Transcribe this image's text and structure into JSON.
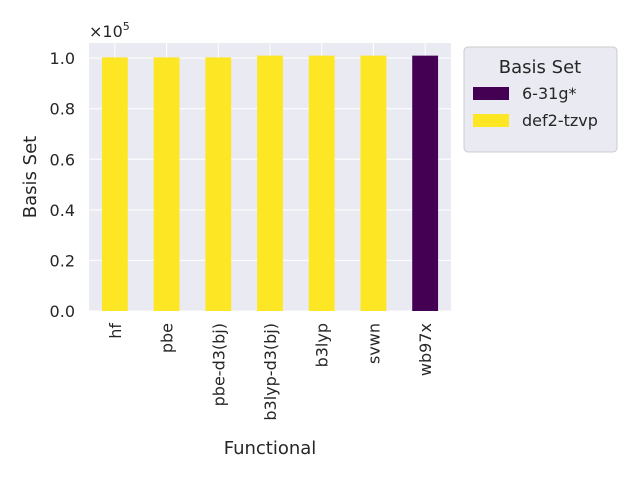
{
  "chart_data": {
    "type": "bar",
    "title": "",
    "xlabel": "Functional",
    "ylabel": "Basis Set",
    "offset_label": "×10",
    "offset_exponent": "5",
    "categories": [
      "hf",
      "pbe",
      "pbe-d3(bj)",
      "b3lyp-d3(bj)",
      "b3lyp",
      "svwn",
      "wb97x"
    ],
    "values": [
      1.003,
      1.003,
      1.003,
      1.01,
      1.01,
      1.01,
      1.01
    ],
    "colors": [
      "#fde725",
      "#fde725",
      "#fde725",
      "#fde725",
      "#fde725",
      "#fde725",
      "#440154"
    ],
    "ylim": [
      0,
      1.06
    ],
    "yticks": [
      0.0,
      0.2,
      0.4,
      0.6,
      0.8,
      1.0
    ],
    "ytick_labels": [
      "0.0",
      "0.2",
      "0.4",
      "0.6",
      "0.8",
      "1.0"
    ],
    "grid": true,
    "legend": {
      "title": "Basis Set",
      "placement": "outside-right",
      "entries": [
        {
          "label": "6-31g*",
          "color": "#440154"
        },
        {
          "label": "def2-tzvp",
          "color": "#fde725"
        }
      ]
    }
  }
}
